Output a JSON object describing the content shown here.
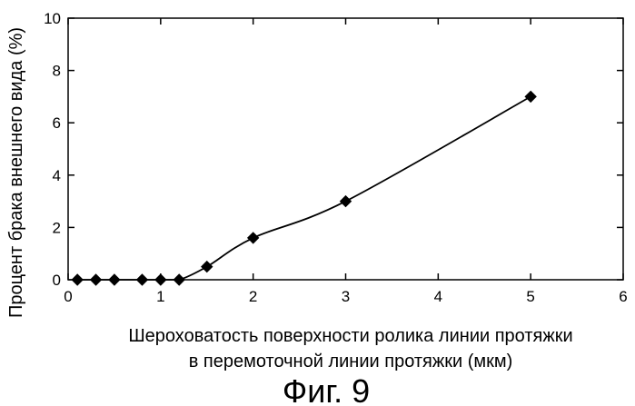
{
  "chart_data": {
    "type": "line",
    "title": "",
    "xlabel_lines": [
      "Шероховатость поверхности ролика линии протяжки",
      "в перемоточной линии протяжки (мкм)"
    ],
    "ylabel": "Процент брака внешнего вида (%)",
    "xlim": [
      0,
      6
    ],
    "ylim": [
      0,
      10
    ],
    "x_ticks": [
      0,
      1,
      2,
      3,
      4,
      5,
      6
    ],
    "y_ticks": [
      0,
      2,
      4,
      6,
      8,
      10
    ],
    "grid": false,
    "marker": "diamond",
    "line_style": "smooth",
    "color": "#000000",
    "series": [
      {
        "x": [
          0.1,
          0.3,
          0.5,
          0.8,
          1.0,
          1.2,
          1.5,
          2.0,
          3.0,
          5.0
        ],
        "y": [
          0,
          0,
          0,
          0,
          0,
          0,
          0.5,
          1.6,
          3.0,
          7.0
        ]
      }
    ]
  },
  "caption": "Фиг. 9"
}
